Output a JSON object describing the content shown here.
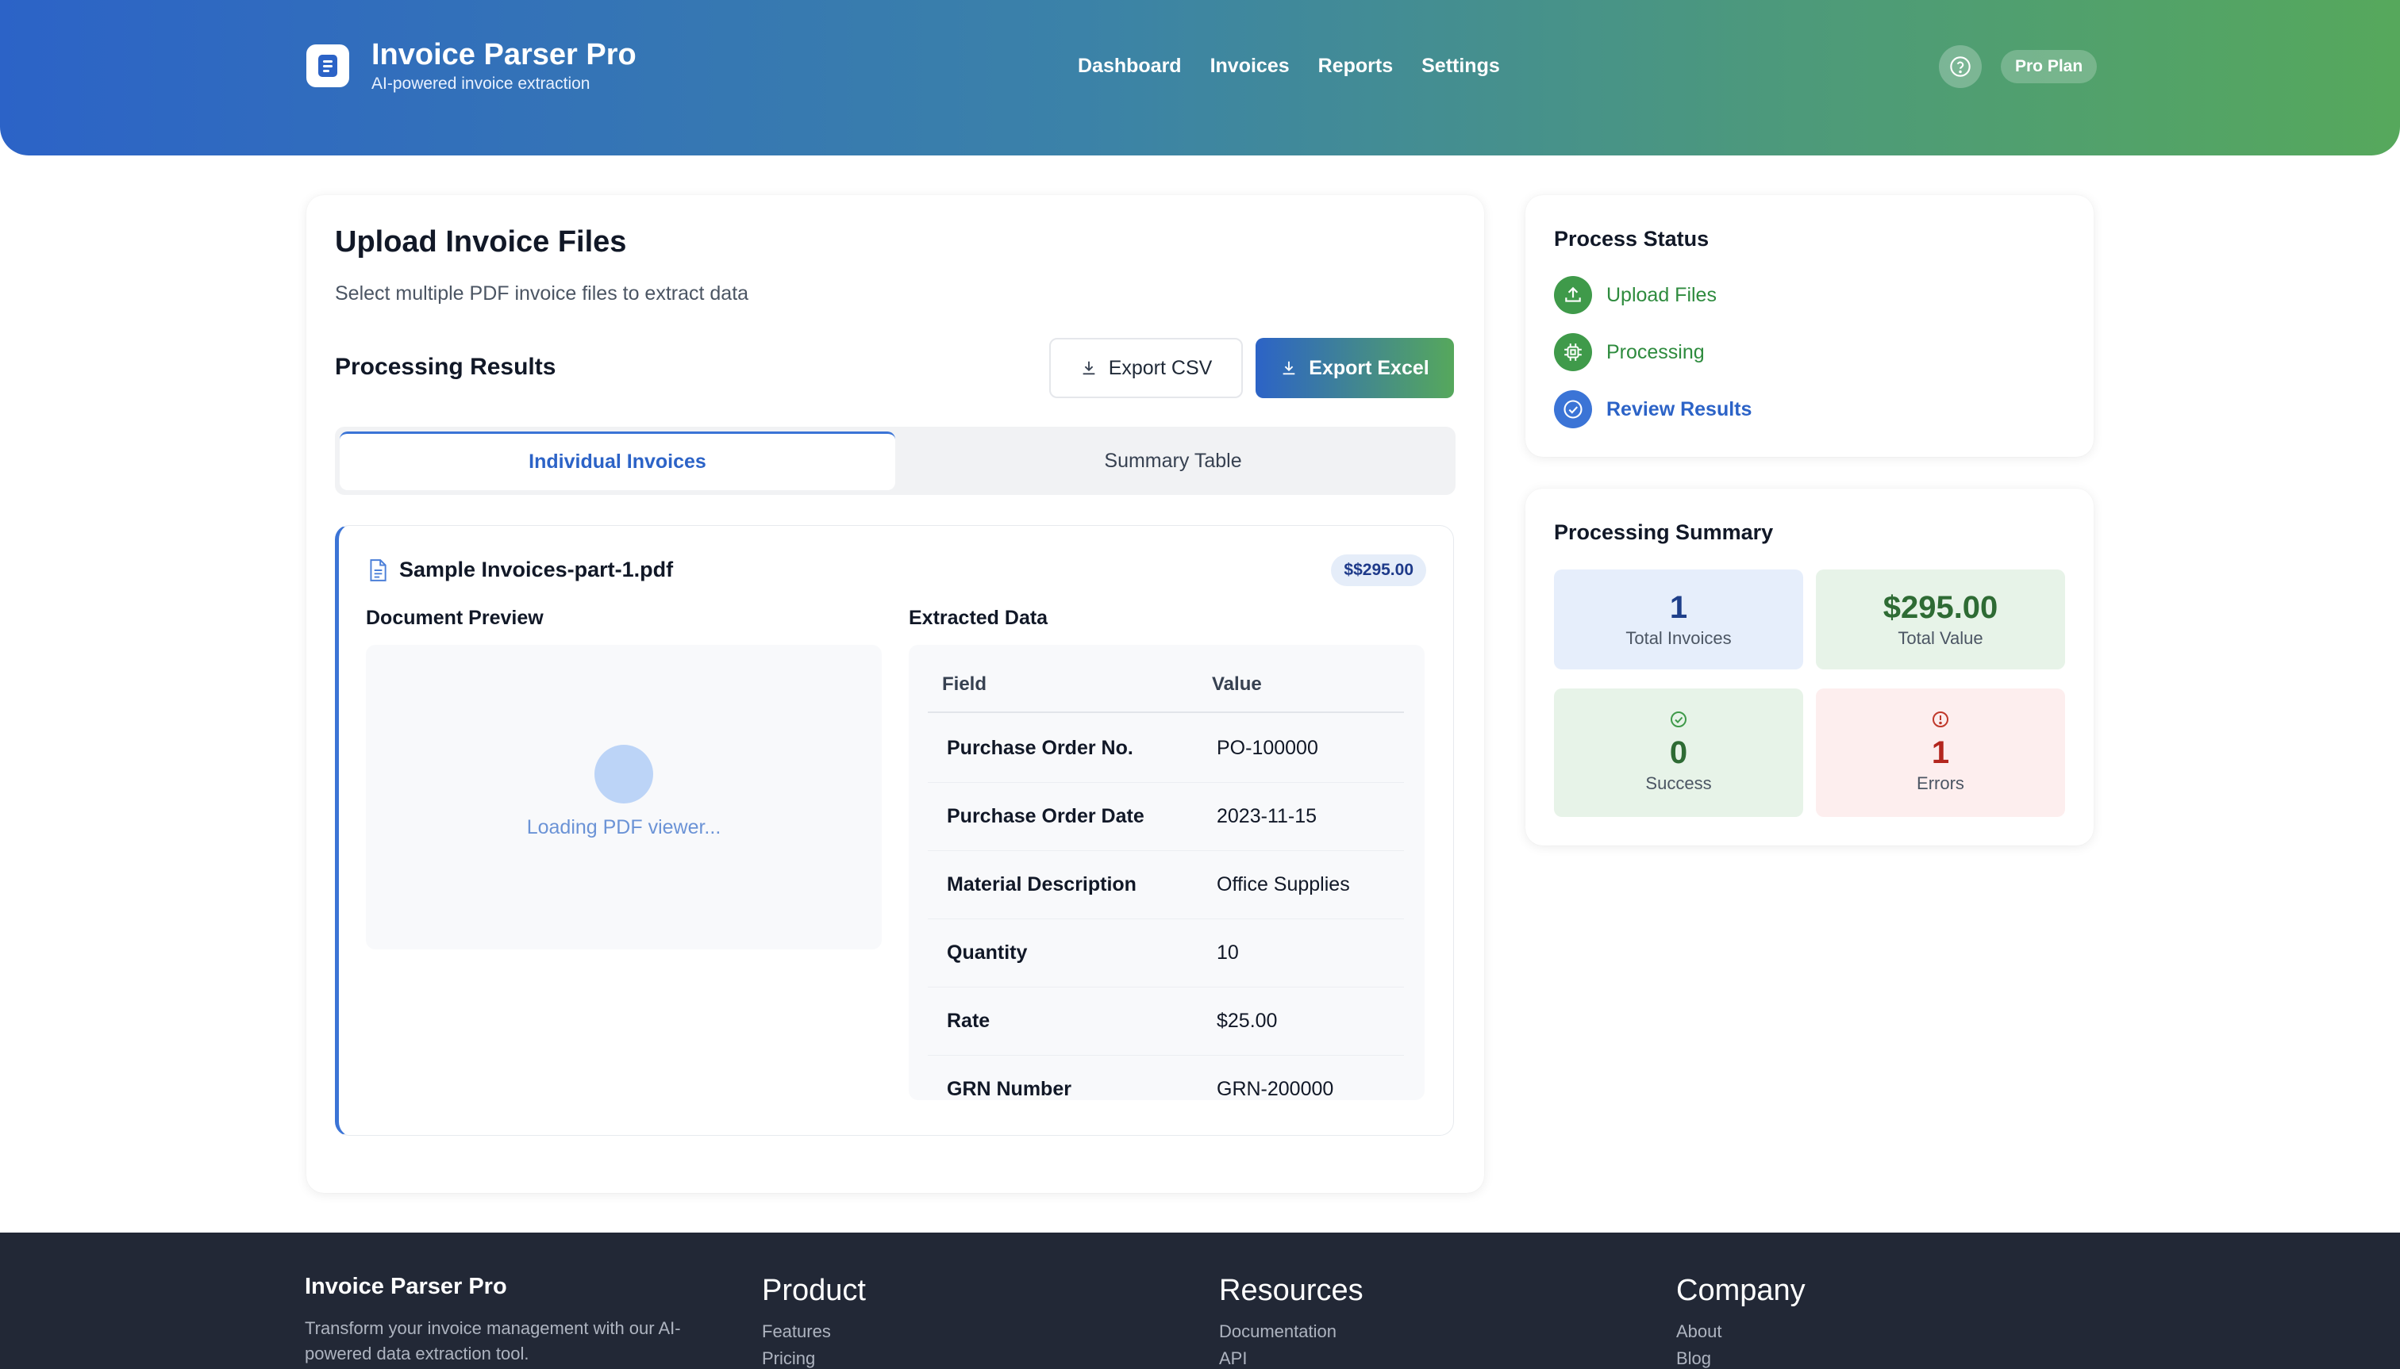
{
  "header": {
    "app_title": "Invoice Parser Pro",
    "app_subtitle": "AI-powered invoice extraction",
    "nav": [
      "Dashboard",
      "Invoices",
      "Reports",
      "Settings"
    ],
    "plan_badge": "Pro Plan",
    "help_icon": "help-circle-icon"
  },
  "main": {
    "upload_title": "Upload Invoice Files",
    "upload_subtitle": "Select multiple PDF invoice files to extract data",
    "results_title": "Processing Results",
    "export_csv_label": "Export CSV",
    "export_excel_label": "Export Excel",
    "tabs": [
      {
        "label": "Individual Invoices",
        "active": true
      },
      {
        "label": "Summary Table",
        "active": false
      }
    ],
    "invoice": {
      "file_name": "Sample Invoices-part-1.pdf",
      "amount_badge": "$$295.00",
      "preview_heading": "Document Preview",
      "preview_loading": "Loading PDF viewer...",
      "extracted_heading": "Extracted Data",
      "columns": [
        "Field",
        "Value"
      ],
      "rows": [
        {
          "field": "Purchase Order No.",
          "value": "PO-100000"
        },
        {
          "field": "Purchase Order Date",
          "value": "2023-11-15"
        },
        {
          "field": "Material Description",
          "value": "Office Supplies"
        },
        {
          "field": "Quantity",
          "value": "10"
        },
        {
          "field": "Rate",
          "value": "$25.00"
        },
        {
          "field": "GRN Number",
          "value": "GRN-200000"
        }
      ]
    }
  },
  "status": {
    "title": "Process Status",
    "steps": [
      {
        "label": "Upload Files",
        "icon": "upload-icon",
        "color": "#2e8b3e"
      },
      {
        "label": "Processing",
        "icon": "chip-icon",
        "color": "#2e8b3e"
      },
      {
        "label": "Review Results",
        "icon": "check-circle-icon",
        "color": "#2c63c7"
      }
    ]
  },
  "summary": {
    "title": "Processing Summary",
    "total_invoices": {
      "value": "1",
      "label": "Total Invoices"
    },
    "total_value": {
      "value": "$295.00",
      "label": "Total Value"
    },
    "success": {
      "value": "0",
      "label": "Success"
    },
    "errors": {
      "value": "1",
      "label": "Errors"
    }
  },
  "footer": {
    "brand_title": "Invoice Parser Pro",
    "brand_text_line1": "Transform your invoice management with our AI-",
    "brand_text_line2": "powered data extraction tool.",
    "columns": [
      {
        "title": "Product",
        "links": [
          "Features",
          "Pricing"
        ]
      },
      {
        "title": "Resources",
        "links": [
          "Documentation",
          "API"
        ]
      },
      {
        "title": "Company",
        "links": [
          "About",
          "Blog"
        ]
      }
    ]
  },
  "colors": {
    "primary": "#2c63c7",
    "accent_green": "#56a85c",
    "error": "#c0392b",
    "footer_bg": "#222836"
  }
}
